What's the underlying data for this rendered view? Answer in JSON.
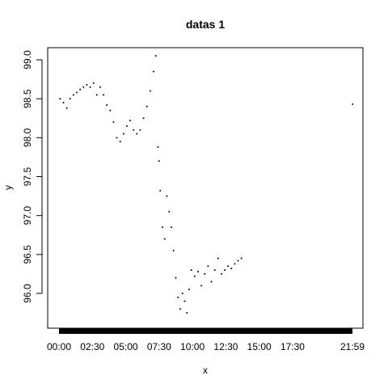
{
  "chart_data": {
    "type": "scatter",
    "title": "datas 1",
    "xlabel": "x",
    "ylabel": "y",
    "x_tick_labels": [
      "00:00",
      "02:30",
      "05:00",
      "07:30",
      "10:00",
      "12:30",
      "15:00",
      "17:30",
      "21:59"
    ],
    "y_tick_labels": [
      "96.0",
      "96.5",
      "97.0",
      "97.5",
      "98.0",
      "98.5",
      "99.0"
    ],
    "y_ticks": [
      96.0,
      96.5,
      97.0,
      97.5,
      98.0,
      98.5,
      99.0
    ],
    "xlim_minutes": [
      0,
      1319
    ],
    "ylim": [
      95.6,
      99.1
    ],
    "grid": false,
    "legend": "none",
    "point_color": "#000000",
    "series": [
      {
        "points": [
          [
            "00:05",
            98.5
          ],
          [
            "00:20",
            98.45
          ],
          [
            "00:35",
            98.38
          ],
          [
            "00:50",
            98.5
          ],
          [
            "01:05",
            98.55
          ],
          [
            "01:20",
            98.58
          ],
          [
            "01:35",
            98.62
          ],
          [
            "01:50",
            98.65
          ],
          [
            "02:05",
            98.68
          ],
          [
            "02:20",
            98.65
          ],
          [
            "02:35",
            98.7
          ],
          [
            "02:50",
            98.55
          ],
          [
            "03:05",
            98.65
          ],
          [
            "03:20",
            98.55
          ],
          [
            "03:35",
            98.42
          ],
          [
            "03:50",
            98.35
          ],
          [
            "04:05",
            98.2
          ],
          [
            "04:20",
            98.0
          ],
          [
            "04:35",
            97.95
          ],
          [
            "04:50",
            98.05
          ],
          [
            "05:05",
            98.15
          ],
          [
            "05:20",
            98.22
          ],
          [
            "05:35",
            98.1
          ],
          [
            "05:50",
            98.05
          ],
          [
            "06:05",
            98.1
          ],
          [
            "06:20",
            98.25
          ],
          [
            "06:35",
            98.4
          ],
          [
            "06:50",
            98.6
          ],
          [
            "07:05",
            98.85
          ],
          [
            "07:15",
            99.05
          ],
          [
            "07:25",
            97.88
          ],
          [
            "07:30",
            97.7
          ],
          [
            "07:35",
            97.32
          ],
          [
            "07:45",
            96.85
          ],
          [
            "07:55",
            96.7
          ],
          [
            "08:05",
            97.25
          ],
          [
            "08:15",
            97.05
          ],
          [
            "08:25",
            96.85
          ],
          [
            "08:35",
            96.55
          ],
          [
            "08:45",
            96.2
          ],
          [
            "08:55",
            95.95
          ],
          [
            "09:05",
            95.8
          ],
          [
            "09:15",
            96.0
          ],
          [
            "09:25",
            95.9
          ],
          [
            "09:35",
            95.75
          ],
          [
            "09:45",
            96.05
          ],
          [
            "09:55",
            96.3
          ],
          [
            "10:10",
            96.22
          ],
          [
            "10:25",
            96.28
          ],
          [
            "10:40",
            96.1
          ],
          [
            "10:55",
            96.25
          ],
          [
            "11:10",
            96.35
          ],
          [
            "11:25",
            96.15
          ],
          [
            "11:40",
            96.3
          ],
          [
            "11:55",
            96.45
          ],
          [
            "12:10",
            96.25
          ],
          [
            "12:25",
            96.3
          ],
          [
            "12:40",
            96.35
          ],
          [
            "12:55",
            96.32
          ],
          [
            "13:10",
            96.38
          ],
          [
            "13:25",
            96.42
          ],
          [
            "13:40",
            96.45
          ],
          [
            "22:00",
            98.43
          ]
        ]
      }
    ]
  }
}
